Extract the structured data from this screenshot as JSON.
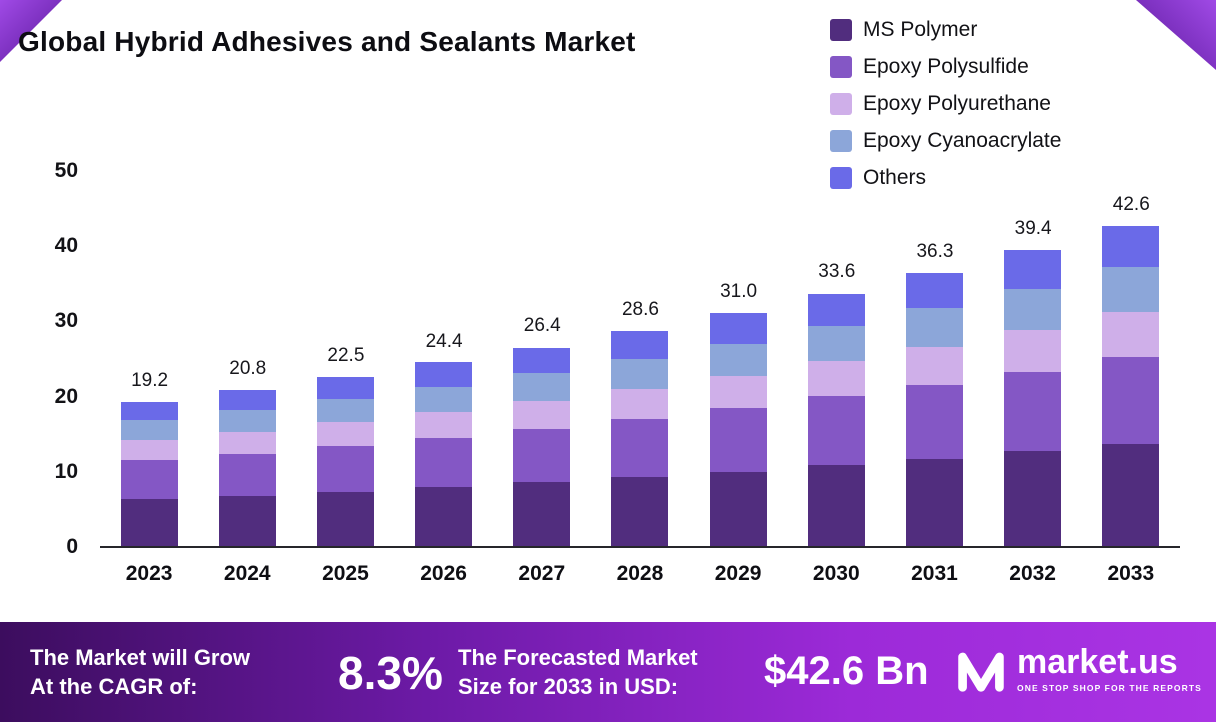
{
  "title": "Global Hybrid Adhesives and Sealants Market",
  "chart_data": {
    "type": "bar",
    "stacked": true,
    "title": "Global Hybrid Adhesives and Sealants Market",
    "categories": [
      "2023",
      "2024",
      "2025",
      "2026",
      "2027",
      "2028",
      "2029",
      "2030",
      "2031",
      "2032",
      "2033"
    ],
    "totals": [
      19.2,
      20.8,
      22.5,
      24.4,
      26.4,
      28.6,
      31.0,
      33.6,
      36.3,
      39.4,
      42.6
    ],
    "series": [
      {
        "name": "MS Polymer",
        "color": "#512d7e",
        "values": [
          6.2,
          6.7,
          7.2,
          7.8,
          8.5,
          9.2,
          9.9,
          10.8,
          11.6,
          12.6,
          13.6
        ]
      },
      {
        "name": "Epoxy Polysulfide",
        "color": "#8457c5",
        "values": [
          5.2,
          5.6,
          6.1,
          6.6,
          7.1,
          7.7,
          8.4,
          9.1,
          9.8,
          10.6,
          11.5
        ]
      },
      {
        "name": "Epoxy Polyurethane",
        "color": "#cfafe9",
        "values": [
          2.7,
          2.9,
          3.2,
          3.4,
          3.7,
          4.0,
          4.3,
          4.7,
          5.1,
          5.5,
          6.0
        ]
      },
      {
        "name": "Epoxy Cyanoacrylate",
        "color": "#8ca6d9",
        "values": [
          2.7,
          2.9,
          3.1,
          3.4,
          3.7,
          4.0,
          4.3,
          4.7,
          5.1,
          5.5,
          6.0
        ]
      },
      {
        "name": "Others",
        "color": "#6a6ae8",
        "values": [
          2.4,
          2.7,
          2.9,
          3.2,
          3.4,
          3.7,
          4.1,
          4.3,
          4.7,
          5.2,
          5.5
        ]
      }
    ],
    "xlabel": "",
    "ylabel": "",
    "ylim": [
      0,
      50
    ],
    "yticks": [
      0,
      10,
      20,
      30,
      40,
      50
    ],
    "grid": false,
    "legend_position": "top-right"
  },
  "footer": {
    "cagr_label_line1": "The Market will Grow",
    "cagr_label_line2": "At the CAGR of:",
    "cagr_value": "8.3%",
    "forecast_label_line1": "The Forecasted Market",
    "forecast_label_line2": "Size for 2033 in USD:",
    "forecast_value": "$42.6 Bn",
    "brand_name": "market.us",
    "brand_tagline": "ONE STOP SHOP FOR THE REPORTS"
  }
}
